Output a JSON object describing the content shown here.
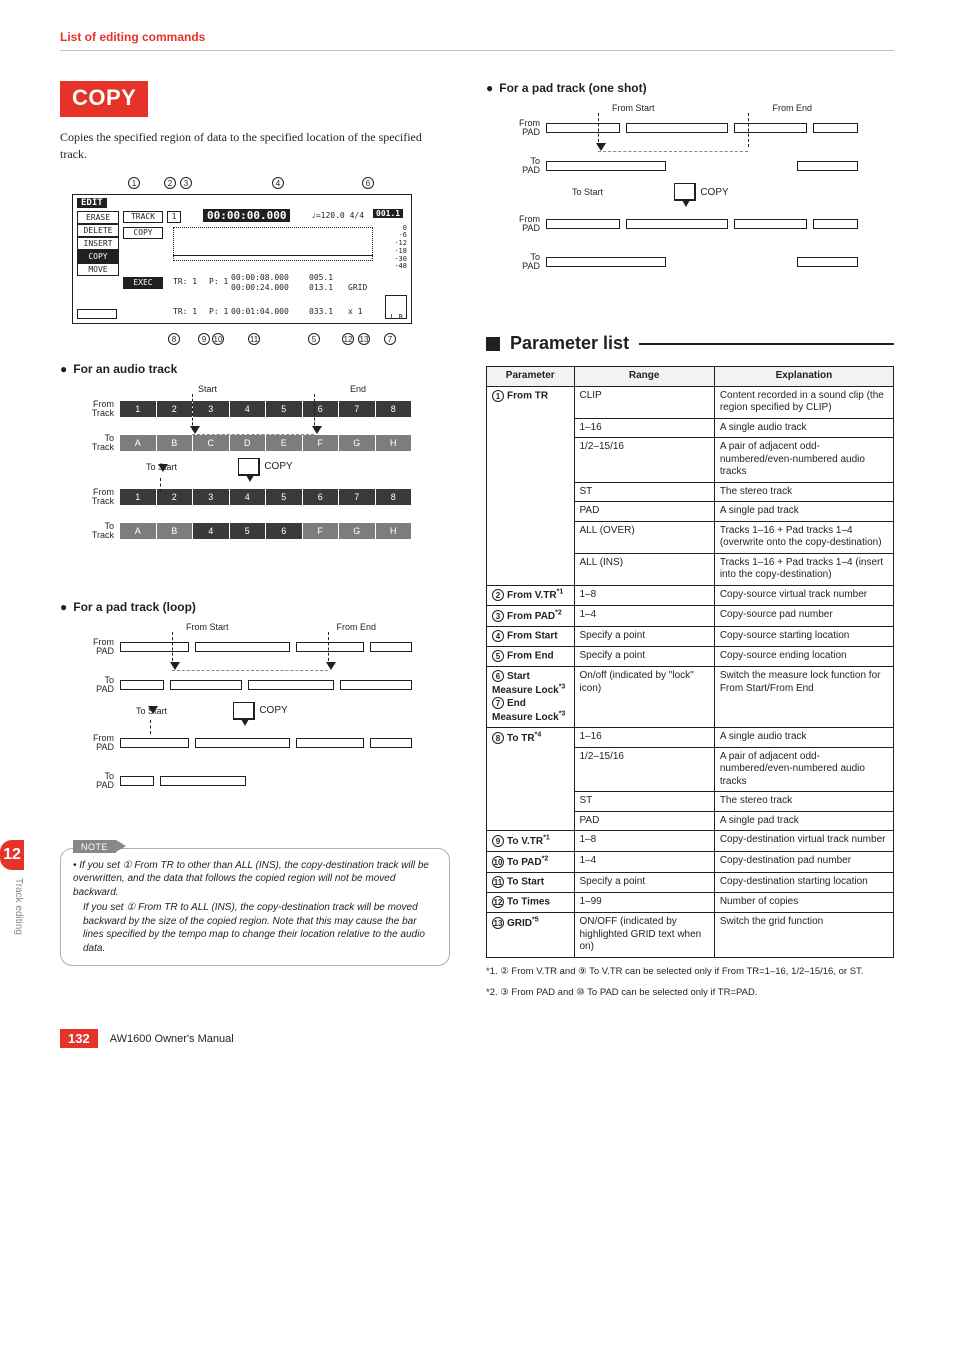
{
  "header": "List of editing commands",
  "chapter_num": "12",
  "side_label": "Track editing",
  "footer_page": "132",
  "footer_text": "AW1600  Owner's Manual",
  "copy": {
    "title": "COPY",
    "desc": "Copies the specified region of data to the specified location of the specified track."
  },
  "lcd": {
    "title": "EDIT",
    "menu": [
      "ERASE",
      "DELETE",
      "INSERT",
      "COPY",
      "MOVE"
    ],
    "menu_sel_idx": 3,
    "timecode_top": "00:00:00.000",
    "bpm": "120.0",
    "sig": "4/4",
    "bar": "001.1",
    "track_hdr": "TRACK",
    "track_no": "1",
    "copy_box": "COPY",
    "exec_box": "EXEC",
    "tr": "TR: 1",
    "p": "P: 1",
    "t1": "00:00:08.000",
    "t2": "00:00:24.000",
    "t3": "00:01:04.000",
    "m1": "005.1",
    "m2": "013.1",
    "m3": "033.1",
    "grid": "GRID",
    "x": "x 1",
    "meter": [
      "0",
      "-6",
      "-12",
      "-18",
      "-30",
      "-48"
    ],
    "callouts_top": [
      "1",
      "2",
      "3",
      "4",
      "6"
    ],
    "callouts_bot": [
      "8",
      "9",
      "10",
      "11",
      "5",
      "12",
      "13",
      "7"
    ]
  },
  "audio": {
    "heading": "For an audio track",
    "start": "Start",
    "end": "End",
    "from": "From\nTrack",
    "to": "To\nTrack",
    "tostart": "To Start",
    "copy": "COPY",
    "row_from_top": [
      "1",
      "2",
      "3",
      "4",
      "5",
      "6",
      "7",
      "8"
    ],
    "row_to_top": [
      "A",
      "B",
      "C",
      "D",
      "E",
      "F",
      "G",
      "H"
    ],
    "row_from_bot": [
      "1",
      "2",
      "3",
      "4",
      "5",
      "6",
      "7",
      "8"
    ],
    "row_to_bot": [
      "A",
      "B",
      "4",
      "5",
      "6",
      "F",
      "G",
      "H"
    ]
  },
  "pad_loop": {
    "heading": "For a pad track (loop)",
    "from_start": "From Start",
    "from_end": "From End",
    "from": "From\nPAD",
    "to": "To\nPAD",
    "tostart": "To Start",
    "copy": "COPY"
  },
  "pad_one": {
    "heading": "For a pad track (one shot)",
    "from_start": "From Start",
    "from_end": "From End",
    "from": "From\nPAD",
    "to": "To\nPAD",
    "tostart": "To Start",
    "copy": "COPY"
  },
  "note": {
    "tag": "NOTE",
    "bullet": "If you set ① From TR to other than ALL (INS), the copy-destination track will be overwritten, and the data that follows the copied region will not be moved backward.",
    "para": "If you set ① From TR to ALL (INS), the copy-destination track will be moved backward by the size of the copied region. Note that this may cause the bar lines specified by the tempo map to change their location relative to the audio data."
  },
  "param": {
    "title": "Parameter list",
    "hdr": [
      "Parameter",
      "Range",
      "Explanation"
    ],
    "rows": [
      {
        "n": "1",
        "p": "From TR",
        "r": "CLIP",
        "e": "Content recorded in a sound clip (the region specified by CLIP)"
      },
      {
        "n": "",
        "p": "",
        "r": "1–16",
        "e": "A single audio track"
      },
      {
        "n": "",
        "p": "",
        "r": "1/2–15/16",
        "e": "A pair of adjacent odd-numbered/even-numbered audio tracks"
      },
      {
        "n": "",
        "p": "",
        "r": "ST",
        "e": "The stereo track"
      },
      {
        "n": "",
        "p": "",
        "r": "PAD",
        "e": "A single pad track"
      },
      {
        "n": "",
        "p": "",
        "r": "ALL (OVER)",
        "e": "Tracks 1–16 + Pad tracks 1–4 (overwrite onto the copy-destination)"
      },
      {
        "n": "",
        "p": "",
        "r": "ALL (INS)",
        "e": "Tracks 1–16 + Pad tracks 1–4 (insert into the copy-destination)"
      },
      {
        "n": "2",
        "p": "From V.TR<sup>*1</sup>",
        "r": "1–8",
        "e": "Copy-source virtual track number"
      },
      {
        "n": "3",
        "p": "From PAD<sup>*2</sup>",
        "r": "1–4",
        "e": "Copy-source pad number"
      },
      {
        "n": "4",
        "p": "From Start",
        "r": "Specify a point",
        "e": "Copy-source starting location"
      },
      {
        "n": "5",
        "p": "From End",
        "r": "Specify a point",
        "e": "Copy-source ending location"
      },
      {
        "n": "6/7",
        "p": "Start Measure Lock<sup>*3</sup><br>End Measure Lock<sup>*3</sup>",
        "r": "On/off (indicated by \"lock\" icon)",
        "e": "Switch the measure lock function for From Start/From End",
        "nn": [
          6,
          7
        ]
      },
      {
        "n": "",
        "p": "",
        "r": "1–16",
        "e": "A single audio track",
        "totr": true
      },
      {
        "n": "",
        "p": "",
        "r": "1/2–15/16",
        "e": "A pair of adjacent odd-numbered/even-numbered audio tracks"
      },
      {
        "n": "",
        "p": "",
        "r": "ST",
        "e": "The stereo track"
      },
      {
        "n": "",
        "p": "",
        "r": "PAD",
        "e": "A single pad track"
      },
      {
        "n": "9",
        "p": "To V.TR<sup>*1</sup>",
        "r": "1–8",
        "e": "Copy-destination virtual track number"
      },
      {
        "n": "10",
        "p": "To PAD<sup>*2</sup>",
        "r": "1–4",
        "e": "Copy-destination pad number"
      },
      {
        "n": "11",
        "p": "To Start",
        "r": "Specify a point",
        "e": "Copy-destination starting location"
      },
      {
        "n": "12",
        "p": "To Times",
        "r": "1–99",
        "e": "Number of copies"
      },
      {
        "n": "13",
        "p": "GRID<sup>*5</sup>",
        "r": "ON/OFF (indicated by highlighted GRID text when on)",
        "e": "Switch the grid function"
      }
    ],
    "fn1": "*1. ② From V.TR and ⑨ To V.TR can be selected only if From TR=1–16, 1/2–15/16, or ST.",
    "fn2": "*2. ③ From PAD and ⑩ To PAD can be selected only if TR=PAD."
  }
}
